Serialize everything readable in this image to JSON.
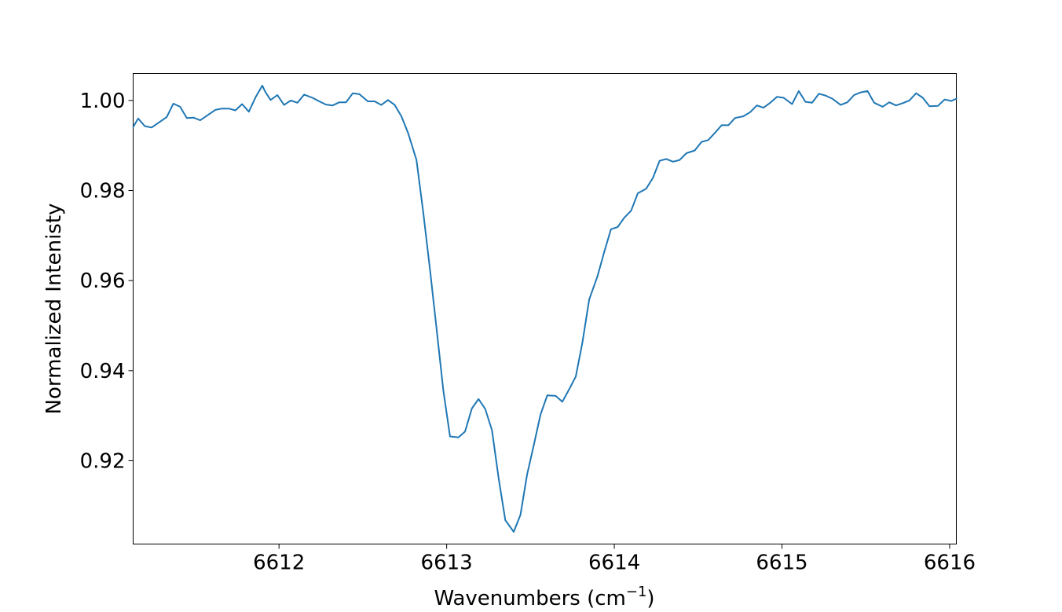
{
  "chart_data": {
    "type": "line",
    "title": "",
    "xlabel": "Wavenumbers (cm",
    "xlabel_sup": "−1",
    "xlabel_close": ")",
    "ylabel": "Normalized Intenisty",
    "xlim": [
      6611.13,
      6616.04
    ],
    "ylim": [
      0.9015,
      1.006
    ],
    "xticks": [
      6612,
      6613,
      6614,
      6615,
      6616
    ],
    "xtick_labels": [
      "6612",
      "6613",
      "6614",
      "6615",
      "6616"
    ],
    "yticks": [
      0.92,
      0.94,
      0.96,
      0.98,
      1.0
    ],
    "ytick_labels": [
      "0.92",
      "0.94",
      "0.96",
      "0.98",
      "1.00"
    ],
    "grid": false,
    "series": [
      {
        "color": "#1f77b4",
        "x": [
          6611.13,
          6611.16,
          6611.2,
          6611.24,
          6611.33,
          6611.37,
          6611.41,
          6611.45,
          6611.49,
          6611.53,
          6611.62,
          6611.66,
          6611.7,
          6611.74,
          6611.78,
          6611.82,
          6611.86,
          6611.9,
          6611.92,
          6611.95,
          6611.99,
          6612.03,
          6612.07,
          6612.11,
          6612.15,
          6612.2,
          6612.24,
          6612.28,
          6612.32,
          6612.36,
          6612.4,
          6612.44,
          6612.48,
          6612.53,
          6612.57,
          6612.61,
          6612.65,
          6612.69,
          6612.73,
          6612.77,
          6612.82,
          6612.86,
          6612.9,
          6612.94,
          6612.98,
          6613.02,
          6613.07,
          6613.11,
          6613.15,
          6613.19,
          6613.23,
          6613.27,
          6613.31,
          6613.35,
          6613.4,
          6613.44,
          6613.48,
          6613.52,
          6613.56,
          6613.6,
          6613.65,
          6613.69,
          6613.73,
          6613.77,
          6613.81,
          6613.85,
          6613.9,
          6613.94,
          6613.98,
          6614.02,
          6614.06,
          6614.1,
          6614.14,
          6614.19,
          6614.23,
          6614.27,
          6614.31,
          6614.35,
          6614.39,
          6614.43,
          6614.48,
          6614.52,
          6614.56,
          6614.6,
          6614.64,
          6614.68,
          6614.72,
          6614.77,
          6614.81,
          6614.85,
          6614.89,
          6614.93,
          6614.97,
          6615.01,
          6615.06,
          6615.1,
          6615.14,
          6615.18,
          6615.22,
          6615.26,
          6615.3,
          6615.35,
          6615.39,
          6615.43,
          6615.47,
          6615.51,
          6615.55,
          6615.6,
          6615.64,
          6615.68,
          6615.72,
          6615.76,
          6615.8,
          6615.84,
          6615.88,
          6615.93,
          6615.97,
          6616.01,
          6616.04
        ],
        "y": [
          0.9941,
          0.996,
          0.9943,
          0.994,
          0.9963,
          0.9993,
          0.9986,
          0.9961,
          0.9962,
          0.9956,
          0.9979,
          0.9982,
          0.9982,
          0.9978,
          0.9992,
          0.9975,
          1.0007,
          1.0033,
          1.0018,
          1.0001,
          1.0012,
          0.999,
          1.0,
          0.9995,
          1.0013,
          1.0006,
          0.9998,
          0.9991,
          0.9989,
          0.9996,
          0.9996,
          1.0016,
          1.0014,
          0.9998,
          0.9998,
          0.999,
          1.0001,
          0.999,
          0.9965,
          0.9928,
          0.9868,
          0.9752,
          0.9626,
          0.9493,
          0.9356,
          0.9254,
          0.9252,
          0.9265,
          0.9316,
          0.9337,
          0.9315,
          0.9268,
          0.9161,
          0.9068,
          0.9042,
          0.908,
          0.917,
          0.9235,
          0.9303,
          0.9345,
          0.9344,
          0.9331,
          0.9358,
          0.9387,
          0.9463,
          0.9558,
          0.961,
          0.9664,
          0.9714,
          0.9719,
          0.974,
          0.9755,
          0.9794,
          0.9804,
          0.9828,
          0.9866,
          0.987,
          0.9864,
          0.9868,
          0.9883,
          0.9889,
          0.9908,
          0.9912,
          0.9928,
          0.9945,
          0.9945,
          0.9961,
          0.9965,
          0.9974,
          0.9989,
          0.9984,
          0.9995,
          1.0008,
          1.0006,
          0.9992,
          1.0021,
          0.9997,
          0.9995,
          1.0015,
          1.0011,
          1.0004,
          0.999,
          0.9996,
          1.0012,
          1.0018,
          1.0021,
          0.9995,
          0.9986,
          0.9996,
          0.9989,
          0.9994,
          1.0,
          1.0016,
          1.0006,
          0.9987,
          0.9988,
          1.0002,
          0.9999,
          1.0004
        ]
      }
    ]
  }
}
